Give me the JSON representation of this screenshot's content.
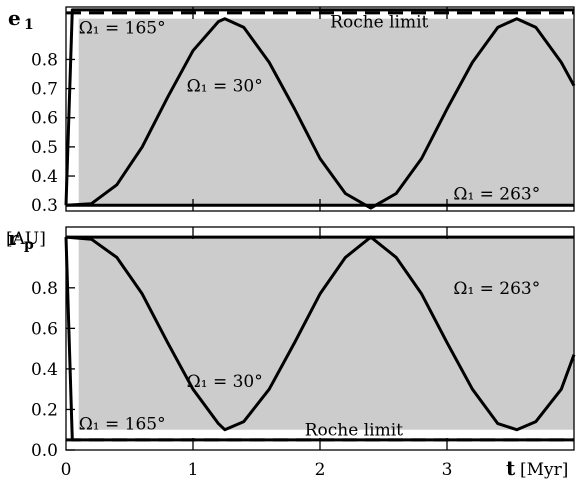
{
  "chart_data": [
    {
      "type": "line",
      "panel": "top",
      "ylabel": "e",
      "ylabel_sub": "1",
      "xlim": [
        0,
        4.0
      ],
      "ylim": [
        0.28,
        0.98
      ],
      "yticks": [
        0.3,
        0.4,
        0.5,
        0.6,
        0.7,
        0.8
      ],
      "ytick_labels": [
        "0.3",
        "0.4",
        "0.5",
        "0.6",
        "0.7",
        "0.8"
      ],
      "shaded_band": {
        "x_from": 0.1,
        "y_from": 0.3,
        "y_to": 0.94,
        "color": "#cccccc"
      },
      "dashed_line": {
        "y": 0.96,
        "label": "Roche limit",
        "label_x": 2.08,
        "label_y": 0.93
      },
      "series": [
        {
          "label": "Ω₁ = 165°",
          "label_x": 0.1,
          "label_y": 0.91,
          "points": [
            [
              0,
              0.3
            ],
            [
              0.05,
              0.97
            ],
            [
              4.0,
              0.97
            ]
          ]
        },
        {
          "label": "Ω₁ = 30°",
          "label_x": 0.95,
          "label_y": 0.71,
          "points": [
            [
              0,
              0.3
            ],
            [
              0.2,
              0.305
            ],
            [
              0.4,
              0.37
            ],
            [
              0.6,
              0.5
            ],
            [
              0.8,
              0.67
            ],
            [
              1.0,
              0.83
            ],
            [
              1.2,
              0.93
            ],
            [
              1.25,
              0.94
            ],
            [
              1.4,
              0.91
            ],
            [
              1.6,
              0.79
            ],
            [
              1.8,
              0.63
            ],
            [
              2.0,
              0.46
            ],
            [
              2.2,
              0.34
            ],
            [
              2.4,
              0.29
            ],
            [
              2.6,
              0.34
            ],
            [
              2.8,
              0.46
            ],
            [
              3.0,
              0.63
            ],
            [
              3.2,
              0.79
            ],
            [
              3.4,
              0.91
            ],
            [
              3.55,
              0.94
            ],
            [
              3.7,
              0.91
            ],
            [
              3.9,
              0.79
            ],
            [
              4.0,
              0.71
            ]
          ]
        },
        {
          "label": "Ω₁ = 263°",
          "label_x": 3.05,
          "label_y": 0.34,
          "points": [
            [
              0,
              0.3
            ],
            [
              4.0,
              0.3
            ]
          ]
        }
      ]
    },
    {
      "type": "line",
      "panel": "bottom",
      "ylabel": "r",
      "ylabel_sub": "p",
      "yunit": "[AU]",
      "xlabel": "t",
      "xunit": "[Myr]",
      "xlim": [
        0,
        4.0
      ],
      "ylim": [
        0.0,
        1.1
      ],
      "xticks": [
        0,
        1,
        2,
        3
      ],
      "xtick_labels": [
        "0",
        "1",
        "2",
        "3"
      ],
      "yticks": [
        0.0,
        0.2,
        0.4,
        0.6,
        0.8
      ],
      "ytick_labels": [
        "0.0",
        "0.2",
        "0.4",
        "0.6",
        "0.8"
      ],
      "shaded_band": {
        "x_from": 0.1,
        "y_from": 0.1,
        "y_to": 1.05,
        "color": "#cccccc"
      },
      "dashed_line": {
        "y": 0.05,
        "label": "Roche limit",
        "label_x": 1.88,
        "label_y": 0.1
      },
      "series": [
        {
          "label": "Ω₁ = 165°",
          "label_x": 0.1,
          "label_y": 0.13,
          "points": [
            [
              0,
              1.05
            ],
            [
              0.05,
              0.05
            ],
            [
              4.0,
              0.05
            ]
          ]
        },
        {
          "label": "Ω₁ = 30°",
          "label_x": 0.95,
          "label_y": 0.34,
          "points": [
            [
              0,
              1.05
            ],
            [
              0.2,
              1.04
            ],
            [
              0.4,
              0.95
            ],
            [
              0.6,
              0.77
            ],
            [
              0.8,
              0.53
            ],
            [
              1.0,
              0.3
            ],
            [
              1.2,
              0.13
            ],
            [
              1.25,
              0.1
            ],
            [
              1.4,
              0.14
            ],
            [
              1.6,
              0.3
            ],
            [
              1.8,
              0.53
            ],
            [
              2.0,
              0.77
            ],
            [
              2.2,
              0.95
            ],
            [
              2.4,
              1.05
            ],
            [
              2.6,
              0.95
            ],
            [
              2.8,
              0.77
            ],
            [
              3.0,
              0.53
            ],
            [
              3.2,
              0.3
            ],
            [
              3.4,
              0.13
            ],
            [
              3.55,
              0.1
            ],
            [
              3.7,
              0.14
            ],
            [
              3.9,
              0.3
            ],
            [
              4.0,
              0.47
            ]
          ]
        },
        {
          "label": "Ω₁ = 263°",
          "label_x": 3.05,
          "label_y": 0.8,
          "points": [
            [
              0,
              1.05
            ],
            [
              4.0,
              1.05
            ]
          ]
        }
      ]
    }
  ]
}
